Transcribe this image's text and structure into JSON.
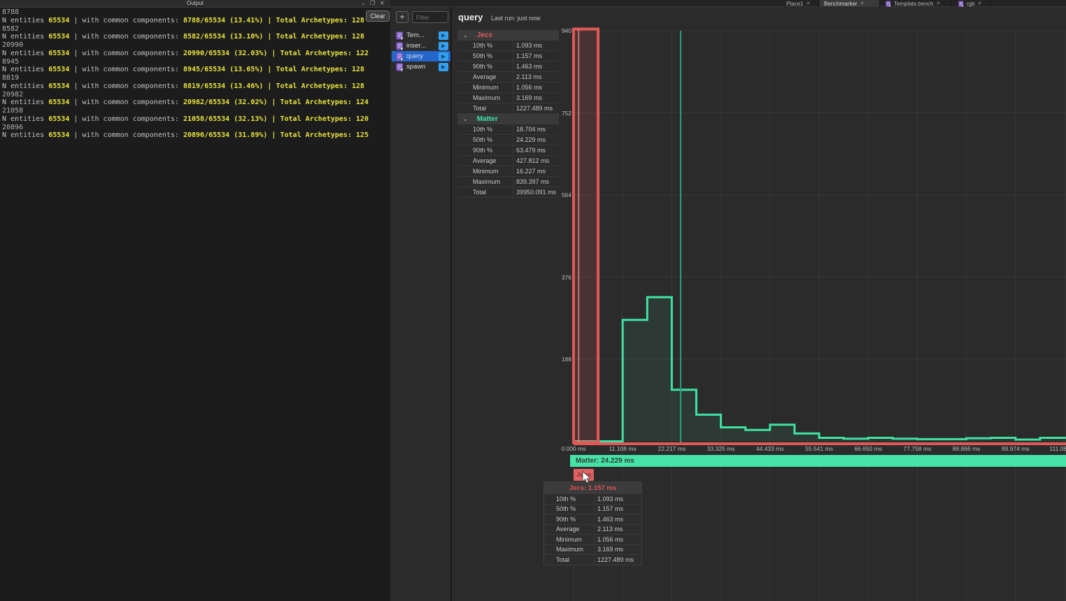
{
  "icons": {
    "close": "✕",
    "chevron_down": "⌄",
    "pop_out": "❐",
    "plus": "+",
    "section_chevron": "⌄"
  },
  "output": {
    "title": "Output",
    "clear_label": "Clear",
    "prefix": "N entities",
    "entities": "65534",
    "pipe": "|",
    "mid": "with common components:",
    "archetypes_label": "Total Archetypes:",
    "runs": [
      {
        "count": "8788",
        "ratio": "8788/65534 (13.41%)",
        "archetypes": "128"
      },
      {
        "count": "8582",
        "ratio": "8582/65534 (13.10%)",
        "archetypes": "128"
      },
      {
        "count": "20990",
        "ratio": "20990/65534 (32.03%)",
        "archetypes": "122"
      },
      {
        "count": "8945",
        "ratio": "8945/65534 (13.65%)",
        "archetypes": "128"
      },
      {
        "count": "8819",
        "ratio": "8819/65534 (13.46%)",
        "archetypes": "128"
      },
      {
        "count": "20982",
        "ratio": "20982/65534 (32.02%)",
        "archetypes": "124"
      },
      {
        "count": "21058",
        "ratio": "21058/65534 (32.13%)",
        "archetypes": "120"
      },
      {
        "count": "20896",
        "ratio": "20896/65534 (31.89%)",
        "archetypes": "125"
      }
    ]
  },
  "tabs": {
    "items": [
      {
        "label": "Place1",
        "icon": false,
        "active": false
      },
      {
        "label": "Benchmarker",
        "icon": false,
        "active": true
      },
      {
        "label": "Template.bench",
        "icon": true,
        "active": false
      },
      {
        "label": "rgb",
        "icon": true,
        "active": false
      }
    ]
  },
  "bench_panel": {
    "filter_placeholder": "Filter",
    "items": [
      {
        "label": "Tem...",
        "selected": false
      },
      {
        "label": "inser...",
        "selected": false
      },
      {
        "label": "query",
        "selected": true
      },
      {
        "label": "spawn",
        "selected": false
      }
    ]
  },
  "main": {
    "title": "query",
    "last_run": "Last run: just now",
    "stats_sections": [
      {
        "name": "Jecs",
        "color": "#e15b5b",
        "rows": [
          [
            "10th %",
            "1.093 ms"
          ],
          [
            "50th %",
            "1.157 ms"
          ],
          [
            "90th %",
            "1.463 ms"
          ],
          [
            "Average",
            "2.113 ms"
          ],
          [
            "Minimum",
            "1.056 ms"
          ],
          [
            "Maximum",
            "3.169 ms"
          ],
          [
            "Total",
            "1227.489 ms"
          ]
        ]
      },
      {
        "name": "Matter",
        "color": "#3ee0a8",
        "rows": [
          [
            "10th %",
            "18.704 ms"
          ],
          [
            "50th %",
            "24.229 ms"
          ],
          [
            "90th %",
            "63.479 ms"
          ],
          [
            "Average",
            "427.812 ms"
          ],
          [
            "Minimum",
            "16.227 ms"
          ],
          [
            "Maximum",
            "839.397 ms"
          ],
          [
            "Total",
            "39950.091 ms"
          ]
        ]
      }
    ],
    "legend": {
      "matter_label": "Matter: 24.229 ms",
      "jecs_label": "Jecs: 1.157 ms"
    },
    "tooltip": {
      "title": "Jecs: 1.157 ms",
      "rows": [
        [
          "10th %",
          "1.093 ms"
        ],
        [
          "50th %",
          "1.157 ms"
        ],
        [
          "90th %",
          "1.463 ms"
        ],
        [
          "Average",
          "2.113 ms"
        ],
        [
          "Minimum",
          "1.056 ms"
        ],
        [
          "Maximum",
          "3.169 ms"
        ],
        [
          "Total",
          "1227.489 ms"
        ]
      ]
    }
  },
  "chart_data": {
    "type": "bar",
    "subtype": "step-histogram",
    "x_unit": "ms",
    "bucket_width_ms": 5.5542,
    "xlim": [
      0,
      111.083
    ],
    "ylim": [
      0,
      944
    ],
    "y_ticks": [
      188,
      376,
      564,
      752,
      940
    ],
    "x_ticks": [
      "0.000 ms",
      "11.108 ms",
      "22.217 ms",
      "33.325 ms",
      "44.433 ms",
      "55.541 ms",
      "66.650 ms",
      "77.758 ms",
      "88.866 ms",
      "99.974 ms",
      "111.083 ms"
    ],
    "x_tick_values": [
      0,
      11.108,
      22.217,
      33.325,
      44.433,
      55.541,
      66.65,
      77.758,
      88.866,
      99.974,
      111.083
    ],
    "grid": true,
    "series": [
      {
        "name": "Jecs",
        "color": "#e25757",
        "median_ms": 1.157,
        "buckets": [
          944,
          0,
          0,
          0,
          0,
          0,
          0,
          0,
          0,
          0,
          0,
          0,
          0,
          0,
          0,
          0,
          0,
          0,
          0,
          0
        ]
      },
      {
        "name": "Matter",
        "color": "#3fe2a4",
        "median_ms": 24.229,
        "buckets": [
          0,
          0,
          278,
          330,
          118,
          61,
          32,
          26,
          38,
          18,
          8,
          6,
          8,
          6,
          5,
          5,
          7,
          8,
          4,
          8
        ]
      }
    ]
  },
  "colors": {
    "red": "#e25757",
    "teal": "#3fe2a4",
    "grid": "#373737",
    "selection_blue": "#2566cb",
    "play_blue": "#33a1f2",
    "script_purple": "#7e57c8",
    "console_yellow": "#e9e43e"
  }
}
